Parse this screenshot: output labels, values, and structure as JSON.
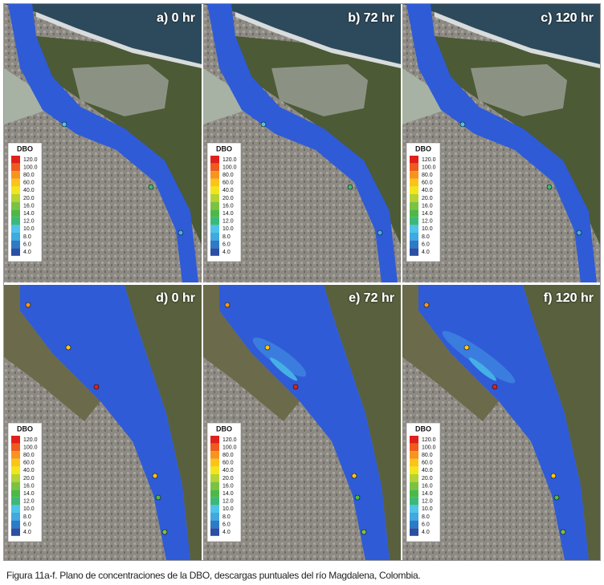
{
  "figure": {
    "panels": [
      {
        "label": "a) 0 hr"
      },
      {
        "label": "b) 72 hr"
      },
      {
        "label": "c) 120 hr"
      },
      {
        "label": "d) 0 hr"
      },
      {
        "label": "e) 72 hr"
      },
      {
        "label": "f) 120 hr"
      }
    ],
    "legend": {
      "title": "DBO",
      "entries": [
        {
          "label": "120.0",
          "color": "#e0201b"
        },
        {
          "label": "100.0",
          "color": "#f05a1e"
        },
        {
          "label": "80.0",
          "color": "#f7941d"
        },
        {
          "label": "60.0",
          "color": "#fcc417"
        },
        {
          "label": "40.0",
          "color": "#f2e51c"
        },
        {
          "label": "20.0",
          "color": "#b5d334"
        },
        {
          "label": "16.0",
          "color": "#7cc242"
        },
        {
          "label": "14.0",
          "color": "#4db848"
        },
        {
          "label": "12.0",
          "color": "#3cb878"
        },
        {
          "label": "10.0",
          "color": "#4fc3e8"
        },
        {
          "label": "8.0",
          "color": "#3fa9e0"
        },
        {
          "label": "6.0",
          "color": "#2b7bc7"
        },
        {
          "label": "4.0",
          "color": "#2a4fa3"
        }
      ]
    },
    "caption": "Figura 11a-f. Plano de concentraciones de la DBO, descargas puntuales del río Magdalena, Colombia."
  }
}
